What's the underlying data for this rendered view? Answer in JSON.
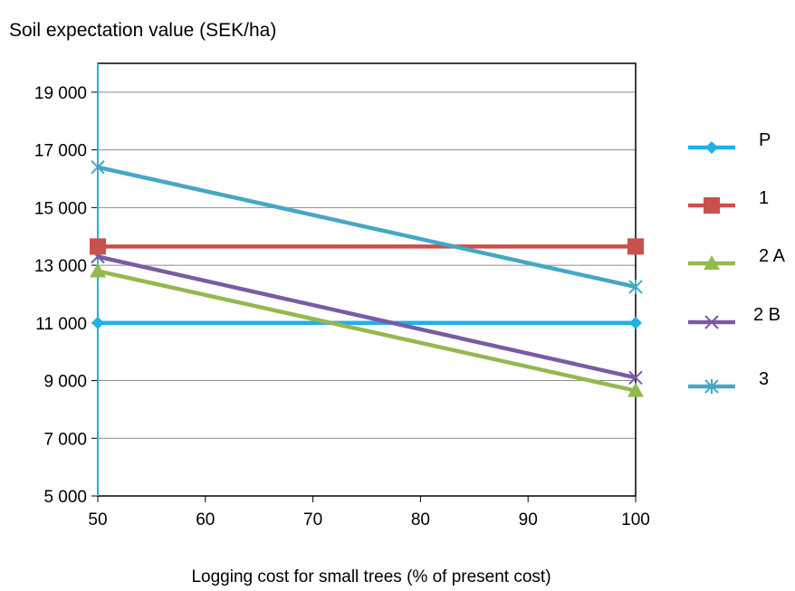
{
  "chart_data": {
    "type": "line",
    "title": "Soil expectation value (SEK/ha)",
    "xlabel": "Logging cost for small trees (% of present cost)",
    "ylabel": "",
    "x": [
      50,
      100
    ],
    "xlim": [
      50,
      100
    ],
    "ylim": [
      5000,
      20000
    ],
    "x_ticks": [
      50,
      60,
      70,
      80,
      90,
      100
    ],
    "x_tick_labels": [
      "50",
      "60",
      "70",
      "80",
      "90",
      "100"
    ],
    "y_ticks": [
      5000,
      7000,
      9000,
      11000,
      13000,
      15000,
      17000,
      19000
    ],
    "y_tick_labels": [
      "5 000",
      "7 000",
      "9 000",
      "11 000",
      "13 000",
      "15 000",
      "17 000",
      "19 000"
    ],
    "grid": "horizontal",
    "legend_position": "right",
    "series": [
      {
        "name": "P",
        "values": [
          11000,
          11000
        ],
        "color": "#1fb2e8",
        "marker": "diamond"
      },
      {
        "name": "1",
        "values": [
          13650,
          13650
        ],
        "color": "#c9504c",
        "marker": "square"
      },
      {
        "name": "2 A",
        "values": [
          12800,
          8650
        ],
        "color": "#93b94f",
        "marker": "triangle"
      },
      {
        "name": "2 B",
        "values": [
          13300,
          9100
        ],
        "color": "#7a5ba3",
        "marker": "x"
      },
      {
        "name": "3",
        "values": [
          16400,
          12250
        ],
        "color": "#45a7c3",
        "marker": "star"
      }
    ]
  }
}
